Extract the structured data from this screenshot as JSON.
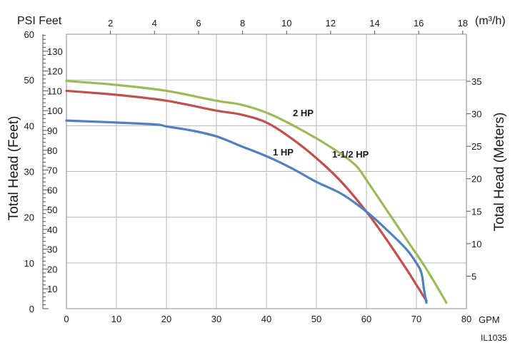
{
  "chart_data": {
    "type": "line",
    "xlabel": "GPM",
    "x_ticks": [
      0,
      10,
      20,
      30,
      40,
      50,
      60,
      70,
      80
    ],
    "xlim": [
      0,
      80
    ],
    "top_axis": {
      "label": "PSI Feet",
      "unit": "(m³/h)",
      "ticks": [
        2,
        4,
        6,
        8,
        10,
        12,
        14,
        16,
        18
      ],
      "factor": 0.2271
    },
    "left_axis_psi": {
      "ticks": [
        0,
        10,
        20,
        30,
        40,
        50,
        60
      ],
      "feet_per_psi": 2.31
    },
    "left_axis_feet": {
      "label": "Total Head (Feet)",
      "ticks": [
        10,
        20,
        30,
        40,
        50,
        60,
        70,
        80,
        90,
        100,
        110,
        120,
        130
      ],
      "ylim": [
        0,
        138.6
      ]
    },
    "right_axis": {
      "label": "Total Head (Meters)",
      "ticks": [
        5,
        10,
        15,
        20,
        25,
        30,
        35
      ],
      "meters_per_foot": 0.3048
    },
    "grid": true,
    "series": [
      {
        "name": "2 HP",
        "color": "#9bbb59",
        "x": [
          0,
          10,
          20,
          30,
          35,
          40,
          45,
          50,
          55,
          58,
          60,
          64,
          68,
          72,
          76
        ],
        "y": [
          115,
          113,
          110,
          105,
          103,
          99,
          93,
          86,
          78,
          72,
          65,
          50,
          35,
          20,
          3
        ]
      },
      {
        "name": "1-1/2 HP",
        "color": "#c0504d",
        "x": [
          0,
          10,
          20,
          30,
          35,
          40,
          45,
          50,
          55,
          60,
          64,
          68,
          70,
          72
        ],
        "y": [
          110,
          108,
          105,
          100,
          98,
          94,
          86,
          76,
          64,
          49,
          35,
          20,
          12,
          4
        ]
      },
      {
        "name": "1 HP",
        "color": "#4f81bd",
        "x": [
          0,
          10,
          18,
          20,
          25,
          30,
          35,
          40,
          45,
          50,
          55,
          60,
          64,
          68,
          70,
          71,
          71.5,
          72
        ],
        "y": [
          95,
          94,
          93,
          92,
          90,
          87,
          82,
          77,
          71,
          64,
          58,
          49,
          40,
          30,
          23,
          18,
          10,
          3
        ]
      }
    ],
    "annotations": [
      "2 HP",
      "1-1/2 HP",
      "1 HP"
    ],
    "figure_id": "IL1035"
  }
}
